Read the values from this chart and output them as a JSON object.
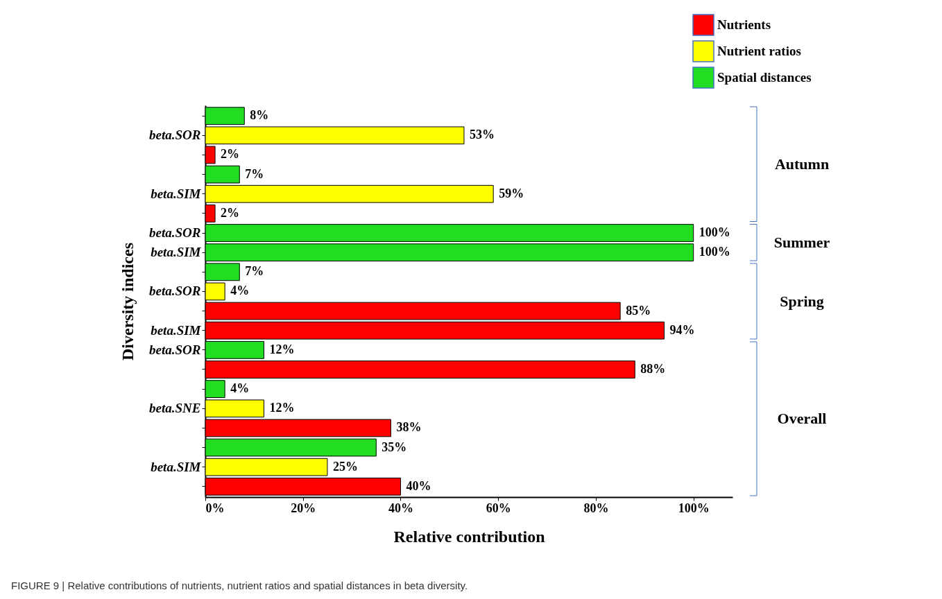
{
  "chart_data": {
    "type": "bar",
    "orientation": "horizontal",
    "xlabel": "Relative contribution",
    "ylabel": "Diversity indices",
    "categories": [
      null,
      "beta.SOR",
      null,
      null,
      "beta.SIM",
      null,
      "beta.SOR",
      "beta.SIM",
      null,
      "beta.SOR",
      null,
      "beta.SIM",
      "beta.SOR",
      null,
      null,
      "beta.SNE",
      null,
      null,
      "beta.SIM",
      null
    ],
    "series": [
      {
        "name": "Nutrients",
        "color": "#ff0000",
        "values": [
          null,
          null,
          2,
          null,
          null,
          2,
          null,
          null,
          null,
          null,
          85,
          94,
          null,
          88,
          null,
          null,
          38,
          null,
          null,
          40
        ],
        "value_labels": [
          null,
          null,
          "2%",
          null,
          null,
          "2%",
          null,
          null,
          null,
          null,
          "85%",
          "94%",
          null,
          "88%",
          null,
          null,
          "38%",
          null,
          null,
          "40%"
        ]
      },
      {
        "name": "Nutrient ratios",
        "color": "#ffff00",
        "values": [
          null,
          53,
          null,
          null,
          59,
          null,
          null,
          null,
          null,
          4,
          null,
          null,
          null,
          null,
          null,
          12,
          null,
          null,
          25,
          null
        ],
        "value_labels": [
          null,
          "53%",
          null,
          null,
          "59%",
          null,
          null,
          null,
          null,
          "4%",
          null,
          null,
          null,
          null,
          null,
          "12%",
          null,
          null,
          "25%",
          null
        ]
      },
      {
        "name": "Spatial distances",
        "color": "#22dd22",
        "values": [
          8,
          null,
          null,
          7,
          null,
          null,
          100,
          100,
          7,
          null,
          null,
          null,
          12,
          null,
          4,
          null,
          null,
          35,
          null,
          null
        ],
        "value_labels": [
          "8%",
          null,
          null,
          "7%",
          null,
          null,
          "100%",
          "100%",
          "7%",
          null,
          null,
          null,
          "12%",
          null,
          "4%",
          null,
          null,
          "35%",
          null,
          null
        ]
      }
    ],
    "xlim": [
      0,
      108
    ],
    "xticks": [
      {
        "value": 0,
        "label": "0%"
      },
      {
        "value": 20,
        "label": "20%"
      },
      {
        "value": 40,
        "label": "40%"
      },
      {
        "value": 60,
        "label": "60%"
      },
      {
        "value": 80,
        "label": "80%"
      },
      {
        "value": 100,
        "label": "100%"
      }
    ],
    "annotations": [
      "Autumn",
      "Summer",
      "Spring",
      "Overall",
      "FIGURE 9 | Relative contributions of nutrients, nutrient ratios and spatial distances in beta diversity."
    ],
    "legend": "top right",
    "grid": false
  }
}
